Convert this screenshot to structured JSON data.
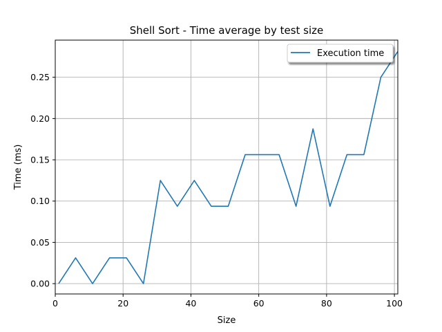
{
  "chart_data": {
    "type": "line",
    "title": "Shell Sort - Time average by test size",
    "xlabel": "Size",
    "ylabel": "Time (ms)",
    "xlim": [
      0,
      101
    ],
    "ylim": [
      -0.0125,
      0.295
    ],
    "xticks": [
      0,
      20,
      40,
      60,
      80,
      100
    ],
    "xtick_labels": [
      "0",
      "20",
      "40",
      "60",
      "80",
      "100"
    ],
    "yticks": [
      0.0,
      0.05,
      0.1,
      0.15,
      0.2,
      0.25
    ],
    "ytick_labels": [
      "0.00",
      "0.05",
      "0.10",
      "0.15",
      "0.20",
      "0.25"
    ],
    "grid": true,
    "legend_position": "top-right",
    "series": [
      {
        "name": "Execution time",
        "color": "#1f77b4",
        "x": [
          1,
          6,
          11,
          16,
          21,
          26,
          31,
          36,
          41,
          46,
          51,
          56,
          61,
          66,
          71,
          76,
          81,
          86,
          91,
          96,
          101
        ],
        "y": [
          0.0,
          0.03125,
          0.0,
          0.03125,
          0.03125,
          0.0,
          0.125,
          0.09375,
          0.125,
          0.09375,
          0.09375,
          0.15625,
          0.15625,
          0.15625,
          0.09375,
          0.1875,
          0.09375,
          0.15625,
          0.15625,
          0.25,
          0.28125
        ]
      }
    ]
  }
}
